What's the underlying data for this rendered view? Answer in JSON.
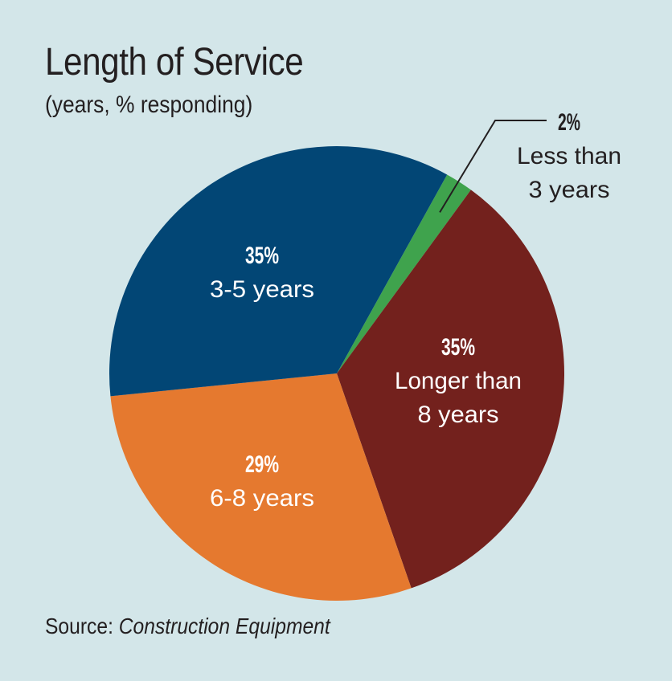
{
  "title": "Length of Service",
  "subtitle": "(years, % responding)",
  "source": {
    "label": "Source: ",
    "name": "Construction Equipment"
  },
  "chart_data": {
    "type": "pie",
    "title": "Length of Service",
    "subtitle": "(years, % responding)",
    "slices": [
      {
        "label": "Less than 3 years",
        "label_lines": [
          "Less than",
          "3 years"
        ],
        "value": 2,
        "percent_label": "2%",
        "color": "#3fa34d",
        "label_color": "#231f20"
      },
      {
        "label": "Longer than 8 years",
        "label_lines": [
          "Longer than",
          "8 years"
        ],
        "value": 35,
        "percent_label": "35%",
        "color": "#73211d",
        "label_color": "#ffffff"
      },
      {
        "label": "6-8 years",
        "label_lines": [
          "6-8 years"
        ],
        "value": 29,
        "percent_label": "29%",
        "color": "#e5792f",
        "label_color": "#ffffff"
      },
      {
        "label": "3-5 years",
        "label_lines": [
          "3-5 years"
        ],
        "value": 35,
        "percent_label": "35%",
        "color": "#024675",
        "label_color": "#ffffff"
      }
    ]
  },
  "colors": {
    "background": "#d3e6e9",
    "text": "#231f20",
    "leader_line": "#231f20"
  }
}
